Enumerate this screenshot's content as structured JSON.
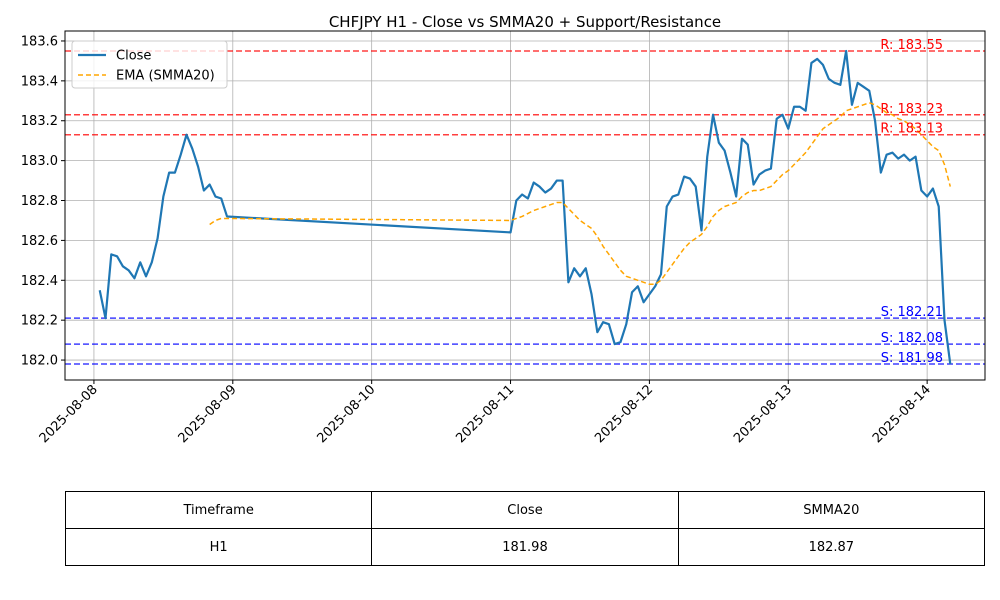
{
  "chart_data": {
    "type": "line",
    "title": "CHFJPY H1 - Close vs SMMA20 + Support/Resistance",
    "xlabel": "",
    "ylabel": "",
    "xlim": [
      "2025-08-07 19:00",
      "2025-08-14 10:00"
    ],
    "ylim": [
      181.9,
      183.65
    ],
    "grid": true,
    "legend_position": "top-left",
    "x_ticks": [
      "2025-08-08",
      "2025-08-09",
      "2025-08-10",
      "2025-08-11",
      "2025-08-12",
      "2025-08-13",
      "2025-08-14"
    ],
    "y_ticks": [
      "182.0",
      "182.2",
      "182.4",
      "182.6",
      "182.8",
      "183.0",
      "183.2",
      "183.4",
      "183.6"
    ],
    "series": [
      {
        "name": "Close",
        "color": "#1f77b4",
        "style": "solid",
        "points": [
          [
            "2025-08-08 01:00",
            182.35
          ],
          [
            "2025-08-08 02:00",
            182.21
          ],
          [
            "2025-08-08 03:00",
            182.53
          ],
          [
            "2025-08-08 04:00",
            182.52
          ],
          [
            "2025-08-08 05:00",
            182.47
          ],
          [
            "2025-08-08 06:00",
            182.45
          ],
          [
            "2025-08-08 07:00",
            182.41
          ],
          [
            "2025-08-08 08:00",
            182.49
          ],
          [
            "2025-08-08 09:00",
            182.42
          ],
          [
            "2025-08-08 10:00",
            182.49
          ],
          [
            "2025-08-08 11:00",
            182.61
          ],
          [
            "2025-08-08 12:00",
            182.82
          ],
          [
            "2025-08-08 13:00",
            182.94
          ],
          [
            "2025-08-08 14:00",
            182.94
          ],
          [
            "2025-08-08 15:00",
            183.03
          ],
          [
            "2025-08-08 16:00",
            183.13
          ],
          [
            "2025-08-08 17:00",
            183.06
          ],
          [
            "2025-08-08 18:00",
            182.97
          ],
          [
            "2025-08-08 19:00",
            182.85
          ],
          [
            "2025-08-08 20:00",
            182.88
          ],
          [
            "2025-08-08 21:00",
            182.82
          ],
          [
            "2025-08-08 22:00",
            182.81
          ],
          [
            "2025-08-08 23:00",
            182.72
          ],
          [
            "2025-08-11 00:00",
            182.64
          ],
          [
            "2025-08-11 01:00",
            182.8
          ],
          [
            "2025-08-11 02:00",
            182.83
          ],
          [
            "2025-08-11 03:00",
            182.81
          ],
          [
            "2025-08-11 04:00",
            182.89
          ],
          [
            "2025-08-11 05:00",
            182.87
          ],
          [
            "2025-08-11 06:00",
            182.84
          ],
          [
            "2025-08-11 07:00",
            182.86
          ],
          [
            "2025-08-11 08:00",
            182.9
          ],
          [
            "2025-08-11 09:00",
            182.9
          ],
          [
            "2025-08-11 10:00",
            182.39
          ],
          [
            "2025-08-11 11:00",
            182.46
          ],
          [
            "2025-08-11 12:00",
            182.42
          ],
          [
            "2025-08-11 13:00",
            182.46
          ],
          [
            "2025-08-11 14:00",
            182.33
          ],
          [
            "2025-08-11 15:00",
            182.14
          ],
          [
            "2025-08-11 16:00",
            182.19
          ],
          [
            "2025-08-11 17:00",
            182.18
          ],
          [
            "2025-08-11 18:00",
            182.08
          ],
          [
            "2025-08-11 19:00",
            182.09
          ],
          [
            "2025-08-11 20:00",
            182.18
          ],
          [
            "2025-08-11 21:00",
            182.34
          ],
          [
            "2025-08-11 22:00",
            182.37
          ],
          [
            "2025-08-11 23:00",
            182.29
          ],
          [
            "2025-08-12 00:00",
            182.33
          ],
          [
            "2025-08-12 01:00",
            182.37
          ],
          [
            "2025-08-12 02:00",
            182.43
          ],
          [
            "2025-08-12 03:00",
            182.77
          ],
          [
            "2025-08-12 04:00",
            182.82
          ],
          [
            "2025-08-12 05:00",
            182.83
          ],
          [
            "2025-08-12 06:00",
            182.92
          ],
          [
            "2025-08-12 07:00",
            182.91
          ],
          [
            "2025-08-12 08:00",
            182.87
          ],
          [
            "2025-08-12 09:00",
            182.65
          ],
          [
            "2025-08-12 10:00",
            183.02
          ],
          [
            "2025-08-12 11:00",
            183.23
          ],
          [
            "2025-08-12 12:00",
            183.09
          ],
          [
            "2025-08-12 13:00",
            183.05
          ],
          [
            "2025-08-12 14:00",
            182.94
          ],
          [
            "2025-08-12 15:00",
            182.82
          ],
          [
            "2025-08-12 16:00",
            183.11
          ],
          [
            "2025-08-12 17:00",
            183.08
          ],
          [
            "2025-08-12 18:00",
            182.88
          ],
          [
            "2025-08-12 19:00",
            182.93
          ],
          [
            "2025-08-12 20:00",
            182.95
          ],
          [
            "2025-08-12 21:00",
            182.96
          ],
          [
            "2025-08-12 22:00",
            183.21
          ],
          [
            "2025-08-12 23:00",
            183.23
          ],
          [
            "2025-08-13 00:00",
            183.16
          ],
          [
            "2025-08-13 01:00",
            183.27
          ],
          [
            "2025-08-13 02:00",
            183.27
          ],
          [
            "2025-08-13 03:00",
            183.25
          ],
          [
            "2025-08-13 04:00",
            183.49
          ],
          [
            "2025-08-13 05:00",
            183.51
          ],
          [
            "2025-08-13 06:00",
            183.48
          ],
          [
            "2025-08-13 07:00",
            183.41
          ],
          [
            "2025-08-13 08:00",
            183.39
          ],
          [
            "2025-08-13 09:00",
            183.38
          ],
          [
            "2025-08-13 10:00",
            183.55
          ],
          [
            "2025-08-13 11:00",
            183.28
          ],
          [
            "2025-08-13 12:00",
            183.39
          ],
          [
            "2025-08-13 13:00",
            183.37
          ],
          [
            "2025-08-13 14:00",
            183.35
          ],
          [
            "2025-08-13 15:00",
            183.2
          ],
          [
            "2025-08-13 16:00",
            182.94
          ],
          [
            "2025-08-13 17:00",
            183.03
          ],
          [
            "2025-08-13 18:00",
            183.04
          ],
          [
            "2025-08-13 19:00",
            183.01
          ],
          [
            "2025-08-13 20:00",
            183.03
          ],
          [
            "2025-08-13 21:00",
            183.0
          ],
          [
            "2025-08-13 22:00",
            183.02
          ],
          [
            "2025-08-13 23:00",
            182.85
          ],
          [
            "2025-08-14 00:00",
            182.82
          ],
          [
            "2025-08-14 01:00",
            182.86
          ],
          [
            "2025-08-14 02:00",
            182.77
          ],
          [
            "2025-08-14 03:00",
            182.2
          ],
          [
            "2025-08-14 04:00",
            181.98
          ]
        ]
      },
      {
        "name": "EMA (SMMA20)",
        "color": "#ffa500",
        "style": "dashed",
        "points": [
          [
            "2025-08-08 20:00",
            182.68
          ],
          [
            "2025-08-08 21:00",
            182.7
          ],
          [
            "2025-08-08 22:00",
            182.71
          ],
          [
            "2025-08-08 23:00",
            182.71
          ],
          [
            "2025-08-11 00:00",
            182.7
          ],
          [
            "2025-08-11 02:00",
            182.72
          ],
          [
            "2025-08-11 04:00",
            182.75
          ],
          [
            "2025-08-11 06:00",
            182.77
          ],
          [
            "2025-08-11 08:00",
            182.79
          ],
          [
            "2025-08-11 09:00",
            182.79
          ],
          [
            "2025-08-11 10:00",
            182.76
          ],
          [
            "2025-08-11 11:00",
            182.73
          ],
          [
            "2025-08-11 12:00",
            182.7
          ],
          [
            "2025-08-11 13:00",
            182.68
          ],
          [
            "2025-08-11 14:00",
            182.66
          ],
          [
            "2025-08-11 15:00",
            182.62
          ],
          [
            "2025-08-11 16:00",
            182.57
          ],
          [
            "2025-08-11 17:00",
            182.53
          ],
          [
            "2025-08-11 18:00",
            182.49
          ],
          [
            "2025-08-11 19:00",
            182.45
          ],
          [
            "2025-08-11 20:00",
            182.42
          ],
          [
            "2025-08-11 22:00",
            182.4
          ],
          [
            "2025-08-12 00:00",
            182.38
          ],
          [
            "2025-08-12 01:00",
            182.38
          ],
          [
            "2025-08-12 02:00",
            182.4
          ],
          [
            "2025-08-12 03:00",
            182.44
          ],
          [
            "2025-08-12 04:00",
            182.48
          ],
          [
            "2025-08-12 05:00",
            182.52
          ],
          [
            "2025-08-12 06:00",
            182.56
          ],
          [
            "2025-08-12 07:00",
            182.59
          ],
          [
            "2025-08-12 08:00",
            182.61
          ],
          [
            "2025-08-12 09:00",
            182.63
          ],
          [
            "2025-08-12 10:00",
            182.67
          ],
          [
            "2025-08-12 11:00",
            182.72
          ],
          [
            "2025-08-12 12:00",
            182.75
          ],
          [
            "2025-08-12 13:00",
            182.77
          ],
          [
            "2025-08-12 14:00",
            182.78
          ],
          [
            "2025-08-12 15:00",
            182.79
          ],
          [
            "2025-08-12 16:00",
            182.82
          ],
          [
            "2025-08-12 17:00",
            182.84
          ],
          [
            "2025-08-12 18:00",
            182.85
          ],
          [
            "2025-08-12 19:00",
            182.85
          ],
          [
            "2025-08-12 20:00",
            182.86
          ],
          [
            "2025-08-12 21:00",
            182.87
          ],
          [
            "2025-08-12 22:00",
            182.9
          ],
          [
            "2025-08-12 23:00",
            182.93
          ],
          [
            "2025-08-13 00:00",
            182.95
          ],
          [
            "2025-08-13 01:00",
            182.98
          ],
          [
            "2025-08-13 02:00",
            183.01
          ],
          [
            "2025-08-13 03:00",
            183.04
          ],
          [
            "2025-08-13 04:00",
            183.08
          ],
          [
            "2025-08-13 05:00",
            183.12
          ],
          [
            "2025-08-13 06:00",
            183.16
          ],
          [
            "2025-08-13 07:00",
            183.18
          ],
          [
            "2025-08-13 08:00",
            183.2
          ],
          [
            "2025-08-13 09:00",
            183.22
          ],
          [
            "2025-08-13 10:00",
            183.25
          ],
          [
            "2025-08-13 11:00",
            183.26
          ],
          [
            "2025-08-13 12:00",
            183.27
          ],
          [
            "2025-08-13 13:00",
            183.28
          ],
          [
            "2025-08-13 14:00",
            183.29
          ],
          [
            "2025-08-13 15:00",
            183.28
          ],
          [
            "2025-08-13 16:00",
            183.26
          ],
          [
            "2025-08-13 17:00",
            183.24
          ],
          [
            "2025-08-13 18:00",
            183.23
          ],
          [
            "2025-08-13 19:00",
            183.21
          ],
          [
            "2025-08-13 20:00",
            183.2
          ],
          [
            "2025-08-13 21:00",
            183.18
          ],
          [
            "2025-08-13 22:00",
            183.16
          ],
          [
            "2025-08-13 23:00",
            183.13
          ],
          [
            "2025-08-14 00:00",
            183.1
          ],
          [
            "2025-08-14 01:00",
            183.07
          ],
          [
            "2025-08-14 02:00",
            183.05
          ],
          [
            "2025-08-14 03:00",
            182.98
          ],
          [
            "2025-08-14 04:00",
            182.87
          ]
        ]
      }
    ],
    "resistance_levels": [
      {
        "value": 183.55,
        "label": "R: 183.55"
      },
      {
        "value": 183.23,
        "label": "R: 183.23"
      },
      {
        "value": 183.13,
        "label": "R: 183.13"
      }
    ],
    "support_levels": [
      {
        "value": 182.21,
        "label": "S: 182.21"
      },
      {
        "value": 182.08,
        "label": "S: 182.08"
      },
      {
        "value": 181.98,
        "label": "S: 181.98"
      }
    ],
    "colors": {
      "resistance": "#ff0000",
      "support": "#0000ff",
      "grid": "#b0b0b0"
    }
  },
  "table": {
    "headers": [
      "Timeframe",
      "Close",
      "SMMA20"
    ],
    "rows": [
      [
        "H1",
        "181.98",
        "182.87"
      ]
    ]
  }
}
